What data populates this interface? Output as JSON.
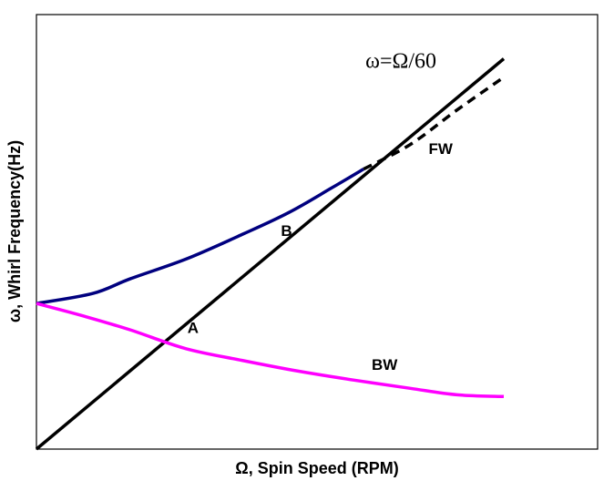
{
  "chart_data": {
    "type": "line",
    "title": "",
    "xlabel": "Ω, Spin Speed (RPM)",
    "ylabel": "ω, Whirl Frequency(Hz)",
    "xlim": [
      0,
      100
    ],
    "ylim": [
      0,
      100
    ],
    "grid": false,
    "ticks": false,
    "series": [
      {
        "name": "ω=Ω/60",
        "style": "solid",
        "color": "#000000",
        "x": [
          0,
          100
        ],
        "y": [
          0,
          90.6
        ]
      },
      {
        "name": "FW",
        "style": "solid",
        "color": "#00007f",
        "x": [
          0,
          12,
          20,
          32,
          44,
          54,
          63,
          70
        ],
        "y": [
          33.8,
          36.1,
          39.5,
          44.1,
          49.8,
          54.9,
          60.5,
          65.0
        ]
      },
      {
        "name": "FW",
        "style": "dashed",
        "color": "#000000",
        "x": [
          70,
          80,
          90,
          100
        ],
        "y": [
          65.0,
          70.7,
          78.7,
          86.3
        ]
      },
      {
        "name": "BW",
        "style": "solid",
        "color": "#ff00ff",
        "x": [
          0,
          10,
          20,
          32,
          44,
          56,
          68,
          80,
          90,
          100
        ],
        "y": [
          33.8,
          30.9,
          27.7,
          23.3,
          20.6,
          18.1,
          16.0,
          14.1,
          12.6,
          12.2
        ]
      }
    ],
    "annotations": [
      {
        "text": "ω=Ω/60",
        "x": 78,
        "y": 88.5
      },
      {
        "text": "FW",
        "x": 86.5,
        "y": 68.5
      },
      {
        "text": "B",
        "x": 53.5,
        "y": 49.5
      },
      {
        "text": "A",
        "x": 33.5,
        "y": 27.0
      },
      {
        "text": "BW",
        "x": 74.5,
        "y": 18.4
      }
    ]
  }
}
